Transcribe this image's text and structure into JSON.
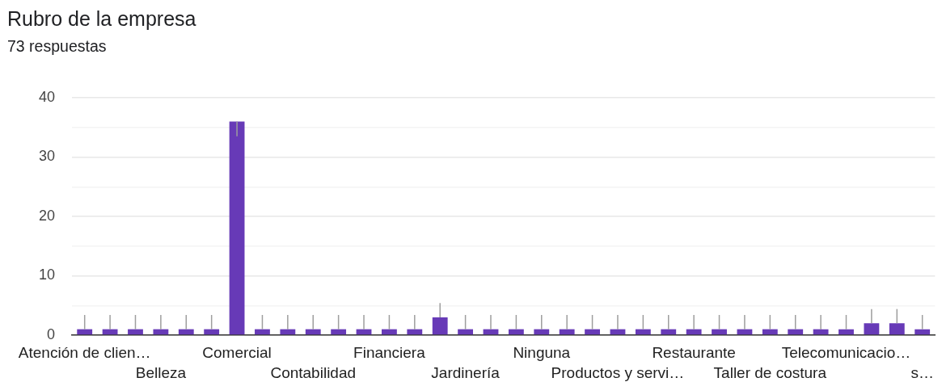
{
  "chart_data": {
    "type": "bar",
    "title": "Rubro de la empresa",
    "subtitle": "73 respuestas",
    "categories": [
      "Atención de clien…",
      null,
      null,
      "Belleza",
      null,
      null,
      "Comercial",
      null,
      null,
      "Contabilidad",
      null,
      null,
      "Financiera",
      null,
      null,
      "Jardinería",
      null,
      null,
      "Ninguna",
      null,
      null,
      "Productos y servi…",
      null,
      null,
      "Restaurante",
      null,
      null,
      "Taller de costura",
      null,
      null,
      "Telecomunicacio…",
      null,
      null,
      "s…"
    ],
    "values": [
      1,
      1,
      1,
      1,
      1,
      1,
      36,
      1,
      1,
      1,
      1,
      1,
      1,
      1,
      3,
      1,
      1,
      1,
      1,
      1,
      1,
      1,
      1,
      1,
      1,
      1,
      1,
      1,
      1,
      1,
      1,
      2,
      2,
      1
    ],
    "errors": [
      [
        1,
        3.4
      ],
      [
        1,
        3.4
      ],
      [
        1,
        3.4
      ],
      [
        1,
        3.4
      ],
      [
        1,
        3.4
      ],
      [
        1,
        3.4
      ],
      [
        33.5,
        36
      ],
      [
        1,
        3.4
      ],
      [
        1,
        3.4
      ],
      [
        1,
        3.4
      ],
      [
        1,
        3.4
      ],
      [
        1,
        3.4
      ],
      [
        1,
        3.4
      ],
      [
        1,
        3.4
      ],
      [
        3,
        5.4
      ],
      [
        1,
        3.4
      ],
      [
        1,
        3.4
      ],
      [
        1,
        3.4
      ],
      [
        1,
        3.4
      ],
      [
        1,
        3.4
      ],
      [
        1,
        3.4
      ],
      [
        1,
        3.4
      ],
      [
        1,
        3.4
      ],
      [
        1,
        3.4
      ],
      [
        1,
        3.4
      ],
      [
        1,
        3.4
      ],
      [
        1,
        3.4
      ],
      [
        1,
        3.4
      ],
      [
        1,
        3.4
      ],
      [
        1,
        3.4
      ],
      [
        1,
        3.4
      ],
      [
        2,
        4.4
      ],
      [
        2,
        4.4
      ],
      [
        1,
        3.4
      ]
    ],
    "color": "#673ab7",
    "ylim": [
      0,
      40
    ],
    "yticks": [
      0,
      {
        "value": 5,
        "label": null
      },
      10,
      {
        "value": 15,
        "label": null
      },
      20,
      {
        "value": 25,
        "label": null
      },
      30,
      {
        "value": 35,
        "label": null
      },
      40
    ],
    "grid": "y"
  }
}
